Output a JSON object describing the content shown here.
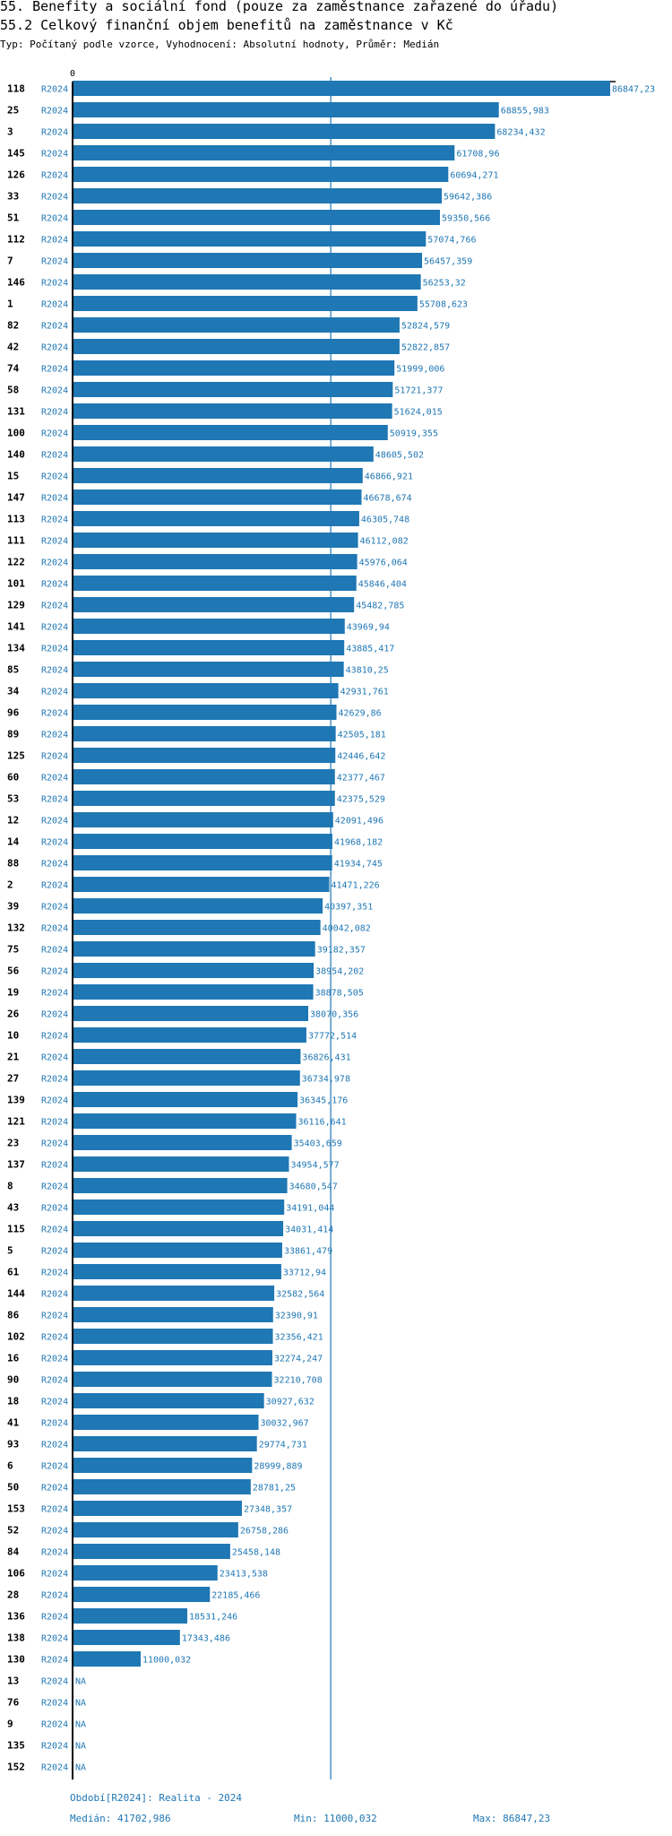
{
  "header": {
    "title": "55. Benefity a sociální fond (pouze za zaměstnance zařazené do úřadu)",
    "subtitle": "55.2 Celkový finanční objem benefitů na zaměstnance v Kč",
    "meta": "Typ: Počítaný podle vzorce, Vyhodnocení: Absolutní hodnoty, Průměr: Medián"
  },
  "chart_data": {
    "type": "bar",
    "orientation": "horizontal",
    "title": "55.2 Celkový finanční objem benefitů na zaměstnance v Kč",
    "xlim": [
      0,
      86847.23
    ],
    "axis_zero_label": "0",
    "reference_line": {
      "name": "Medián",
      "value": 41702.986
    },
    "colors": {
      "bar": "#1f77b4",
      "median": "#1f77b4",
      "text": "#1f77b4"
    },
    "rows": [
      {
        "id": "118",
        "period": "R2024",
        "value": 86847.23,
        "label": "86847,23"
      },
      {
        "id": "25",
        "period": "R2024",
        "value": 68855.983,
        "label": "68855,983"
      },
      {
        "id": "3",
        "period": "R2024",
        "value": 68234.432,
        "label": "68234,432"
      },
      {
        "id": "145",
        "period": "R2024",
        "value": 61708.96,
        "label": "61708,96"
      },
      {
        "id": "126",
        "period": "R2024",
        "value": 60694.271,
        "label": "60694,271"
      },
      {
        "id": "33",
        "period": "R2024",
        "value": 59642.386,
        "label": "59642,386"
      },
      {
        "id": "51",
        "period": "R2024",
        "value": 59350.566,
        "label": "59350,566"
      },
      {
        "id": "112",
        "period": "R2024",
        "value": 57074.766,
        "label": "57074,766"
      },
      {
        "id": "7",
        "period": "R2024",
        "value": 56457.359,
        "label": "56457,359"
      },
      {
        "id": "146",
        "period": "R2024",
        "value": 56253.32,
        "label": "56253,32"
      },
      {
        "id": "1",
        "period": "R2024",
        "value": 55708.623,
        "label": "55708,623"
      },
      {
        "id": "82",
        "period": "R2024",
        "value": 52824.579,
        "label": "52824,579"
      },
      {
        "id": "42",
        "period": "R2024",
        "value": 52822.857,
        "label": "52822,857"
      },
      {
        "id": "74",
        "period": "R2024",
        "value": 51999.006,
        "label": "51999,006"
      },
      {
        "id": "58",
        "period": "R2024",
        "value": 51721.377,
        "label": "51721,377"
      },
      {
        "id": "131",
        "period": "R2024",
        "value": 51624.015,
        "label": "51624,015"
      },
      {
        "id": "100",
        "period": "R2024",
        "value": 50919.355,
        "label": "50919,355"
      },
      {
        "id": "140",
        "period": "R2024",
        "value": 48605.502,
        "label": "48605,502"
      },
      {
        "id": "15",
        "period": "R2024",
        "value": 46866.921,
        "label": "46866,921"
      },
      {
        "id": "147",
        "period": "R2024",
        "value": 46678.674,
        "label": "46678,674"
      },
      {
        "id": "113",
        "period": "R2024",
        "value": 46305.748,
        "label": "46305,748"
      },
      {
        "id": "111",
        "period": "R2024",
        "value": 46112.082,
        "label": "46112,082"
      },
      {
        "id": "122",
        "period": "R2024",
        "value": 45976.064,
        "label": "45976,064"
      },
      {
        "id": "101",
        "period": "R2024",
        "value": 45846.404,
        "label": "45846,404"
      },
      {
        "id": "129",
        "period": "R2024",
        "value": 45482.785,
        "label": "45482,785"
      },
      {
        "id": "141",
        "period": "R2024",
        "value": 43969.94,
        "label": "43969,94"
      },
      {
        "id": "134",
        "period": "R2024",
        "value": 43885.417,
        "label": "43885,417"
      },
      {
        "id": "85",
        "period": "R2024",
        "value": 43810.25,
        "label": "43810,25"
      },
      {
        "id": "34",
        "period": "R2024",
        "value": 42931.761,
        "label": "42931,761"
      },
      {
        "id": "96",
        "period": "R2024",
        "value": 42629.86,
        "label": "42629,86"
      },
      {
        "id": "89",
        "period": "R2024",
        "value": 42505.181,
        "label": "42505,181"
      },
      {
        "id": "125",
        "period": "R2024",
        "value": 42446.642,
        "label": "42446,642"
      },
      {
        "id": "60",
        "period": "R2024",
        "value": 42377.467,
        "label": "42377,467"
      },
      {
        "id": "53",
        "period": "R2024",
        "value": 42375.529,
        "label": "42375,529"
      },
      {
        "id": "12",
        "period": "R2024",
        "value": 42091.496,
        "label": "42091,496"
      },
      {
        "id": "14",
        "period": "R2024",
        "value": 41968.182,
        "label": "41968,182"
      },
      {
        "id": "88",
        "period": "R2024",
        "value": 41934.745,
        "label": "41934,745"
      },
      {
        "id": "2",
        "period": "R2024",
        "value": 41471.226,
        "label": "41471,226"
      },
      {
        "id": "39",
        "period": "R2024",
        "value": 40397.351,
        "label": "40397,351"
      },
      {
        "id": "132",
        "period": "R2024",
        "value": 40042.082,
        "label": "40042,082"
      },
      {
        "id": "75",
        "period": "R2024",
        "value": 39182.357,
        "label": "39182,357"
      },
      {
        "id": "56",
        "period": "R2024",
        "value": 38954.202,
        "label": "38954,202"
      },
      {
        "id": "19",
        "period": "R2024",
        "value": 38878.505,
        "label": "38878,505"
      },
      {
        "id": "26",
        "period": "R2024",
        "value": 38070.356,
        "label": "38070,356"
      },
      {
        "id": "10",
        "period": "R2024",
        "value": 37772.514,
        "label": "37772,514"
      },
      {
        "id": "21",
        "period": "R2024",
        "value": 36826.431,
        "label": "36826,431"
      },
      {
        "id": "27",
        "period": "R2024",
        "value": 36734.978,
        "label": "36734,978"
      },
      {
        "id": "139",
        "period": "R2024",
        "value": 36345.176,
        "label": "36345,176"
      },
      {
        "id": "121",
        "period": "R2024",
        "value": 36116.641,
        "label": "36116,641"
      },
      {
        "id": "23",
        "period": "R2024",
        "value": 35403.659,
        "label": "35403,659"
      },
      {
        "id": "137",
        "period": "R2024",
        "value": 34954.577,
        "label": "34954,577"
      },
      {
        "id": "8",
        "period": "R2024",
        "value": 34680.547,
        "label": "34680,547"
      },
      {
        "id": "43",
        "period": "R2024",
        "value": 34191.044,
        "label": "34191,044"
      },
      {
        "id": "115",
        "period": "R2024",
        "value": 34031.414,
        "label": "34031,414"
      },
      {
        "id": "5",
        "period": "R2024",
        "value": 33861.479,
        "label": "33861,479"
      },
      {
        "id": "61",
        "period": "R2024",
        "value": 33712.94,
        "label": "33712,94"
      },
      {
        "id": "144",
        "period": "R2024",
        "value": 32582.564,
        "label": "32582,564"
      },
      {
        "id": "86",
        "period": "R2024",
        "value": 32390.91,
        "label": "32390,91"
      },
      {
        "id": "102",
        "period": "R2024",
        "value": 32356.421,
        "label": "32356,421"
      },
      {
        "id": "16",
        "period": "R2024",
        "value": 32274.247,
        "label": "32274,247"
      },
      {
        "id": "90",
        "period": "R2024",
        "value": 32210.708,
        "label": "32210,708"
      },
      {
        "id": "18",
        "period": "R2024",
        "value": 30927.632,
        "label": "30927,632"
      },
      {
        "id": "41",
        "period": "R2024",
        "value": 30032.967,
        "label": "30032,967"
      },
      {
        "id": "93",
        "period": "R2024",
        "value": 29774.731,
        "label": "29774,731"
      },
      {
        "id": "6",
        "period": "R2024",
        "value": 28999.889,
        "label": "28999,889"
      },
      {
        "id": "50",
        "period": "R2024",
        "value": 28781.25,
        "label": "28781,25"
      },
      {
        "id": "153",
        "period": "R2024",
        "value": 27348.357,
        "label": "27348,357"
      },
      {
        "id": "52",
        "period": "R2024",
        "value": 26758.286,
        "label": "26758,286"
      },
      {
        "id": "84",
        "period": "R2024",
        "value": 25458.148,
        "label": "25458,148"
      },
      {
        "id": "106",
        "period": "R2024",
        "value": 23413.538,
        "label": "23413,538"
      },
      {
        "id": "28",
        "period": "R2024",
        "value": 22185.466,
        "label": "22185,466"
      },
      {
        "id": "136",
        "period": "R2024",
        "value": 18531.246,
        "label": "18531,246"
      },
      {
        "id": "138",
        "period": "R2024",
        "value": 17343.486,
        "label": "17343,486"
      },
      {
        "id": "130",
        "period": "R2024",
        "value": 11000.032,
        "label": "11000,032"
      },
      {
        "id": "13",
        "period": "R2024",
        "value": null,
        "label": "NA"
      },
      {
        "id": "76",
        "period": "R2024",
        "value": null,
        "label": "NA"
      },
      {
        "id": "9",
        "period": "R2024",
        "value": null,
        "label": "NA"
      },
      {
        "id": "135",
        "period": "R2024",
        "value": null,
        "label": "NA"
      },
      {
        "id": "152",
        "period": "R2024",
        "value": null,
        "label": "NA"
      }
    ]
  },
  "footer": {
    "period": "Období[R2024]: Realita - 2024",
    "median": "Medián: 41702,986",
    "min": "Min: 11000,032",
    "max": "Max: 86847,23"
  }
}
